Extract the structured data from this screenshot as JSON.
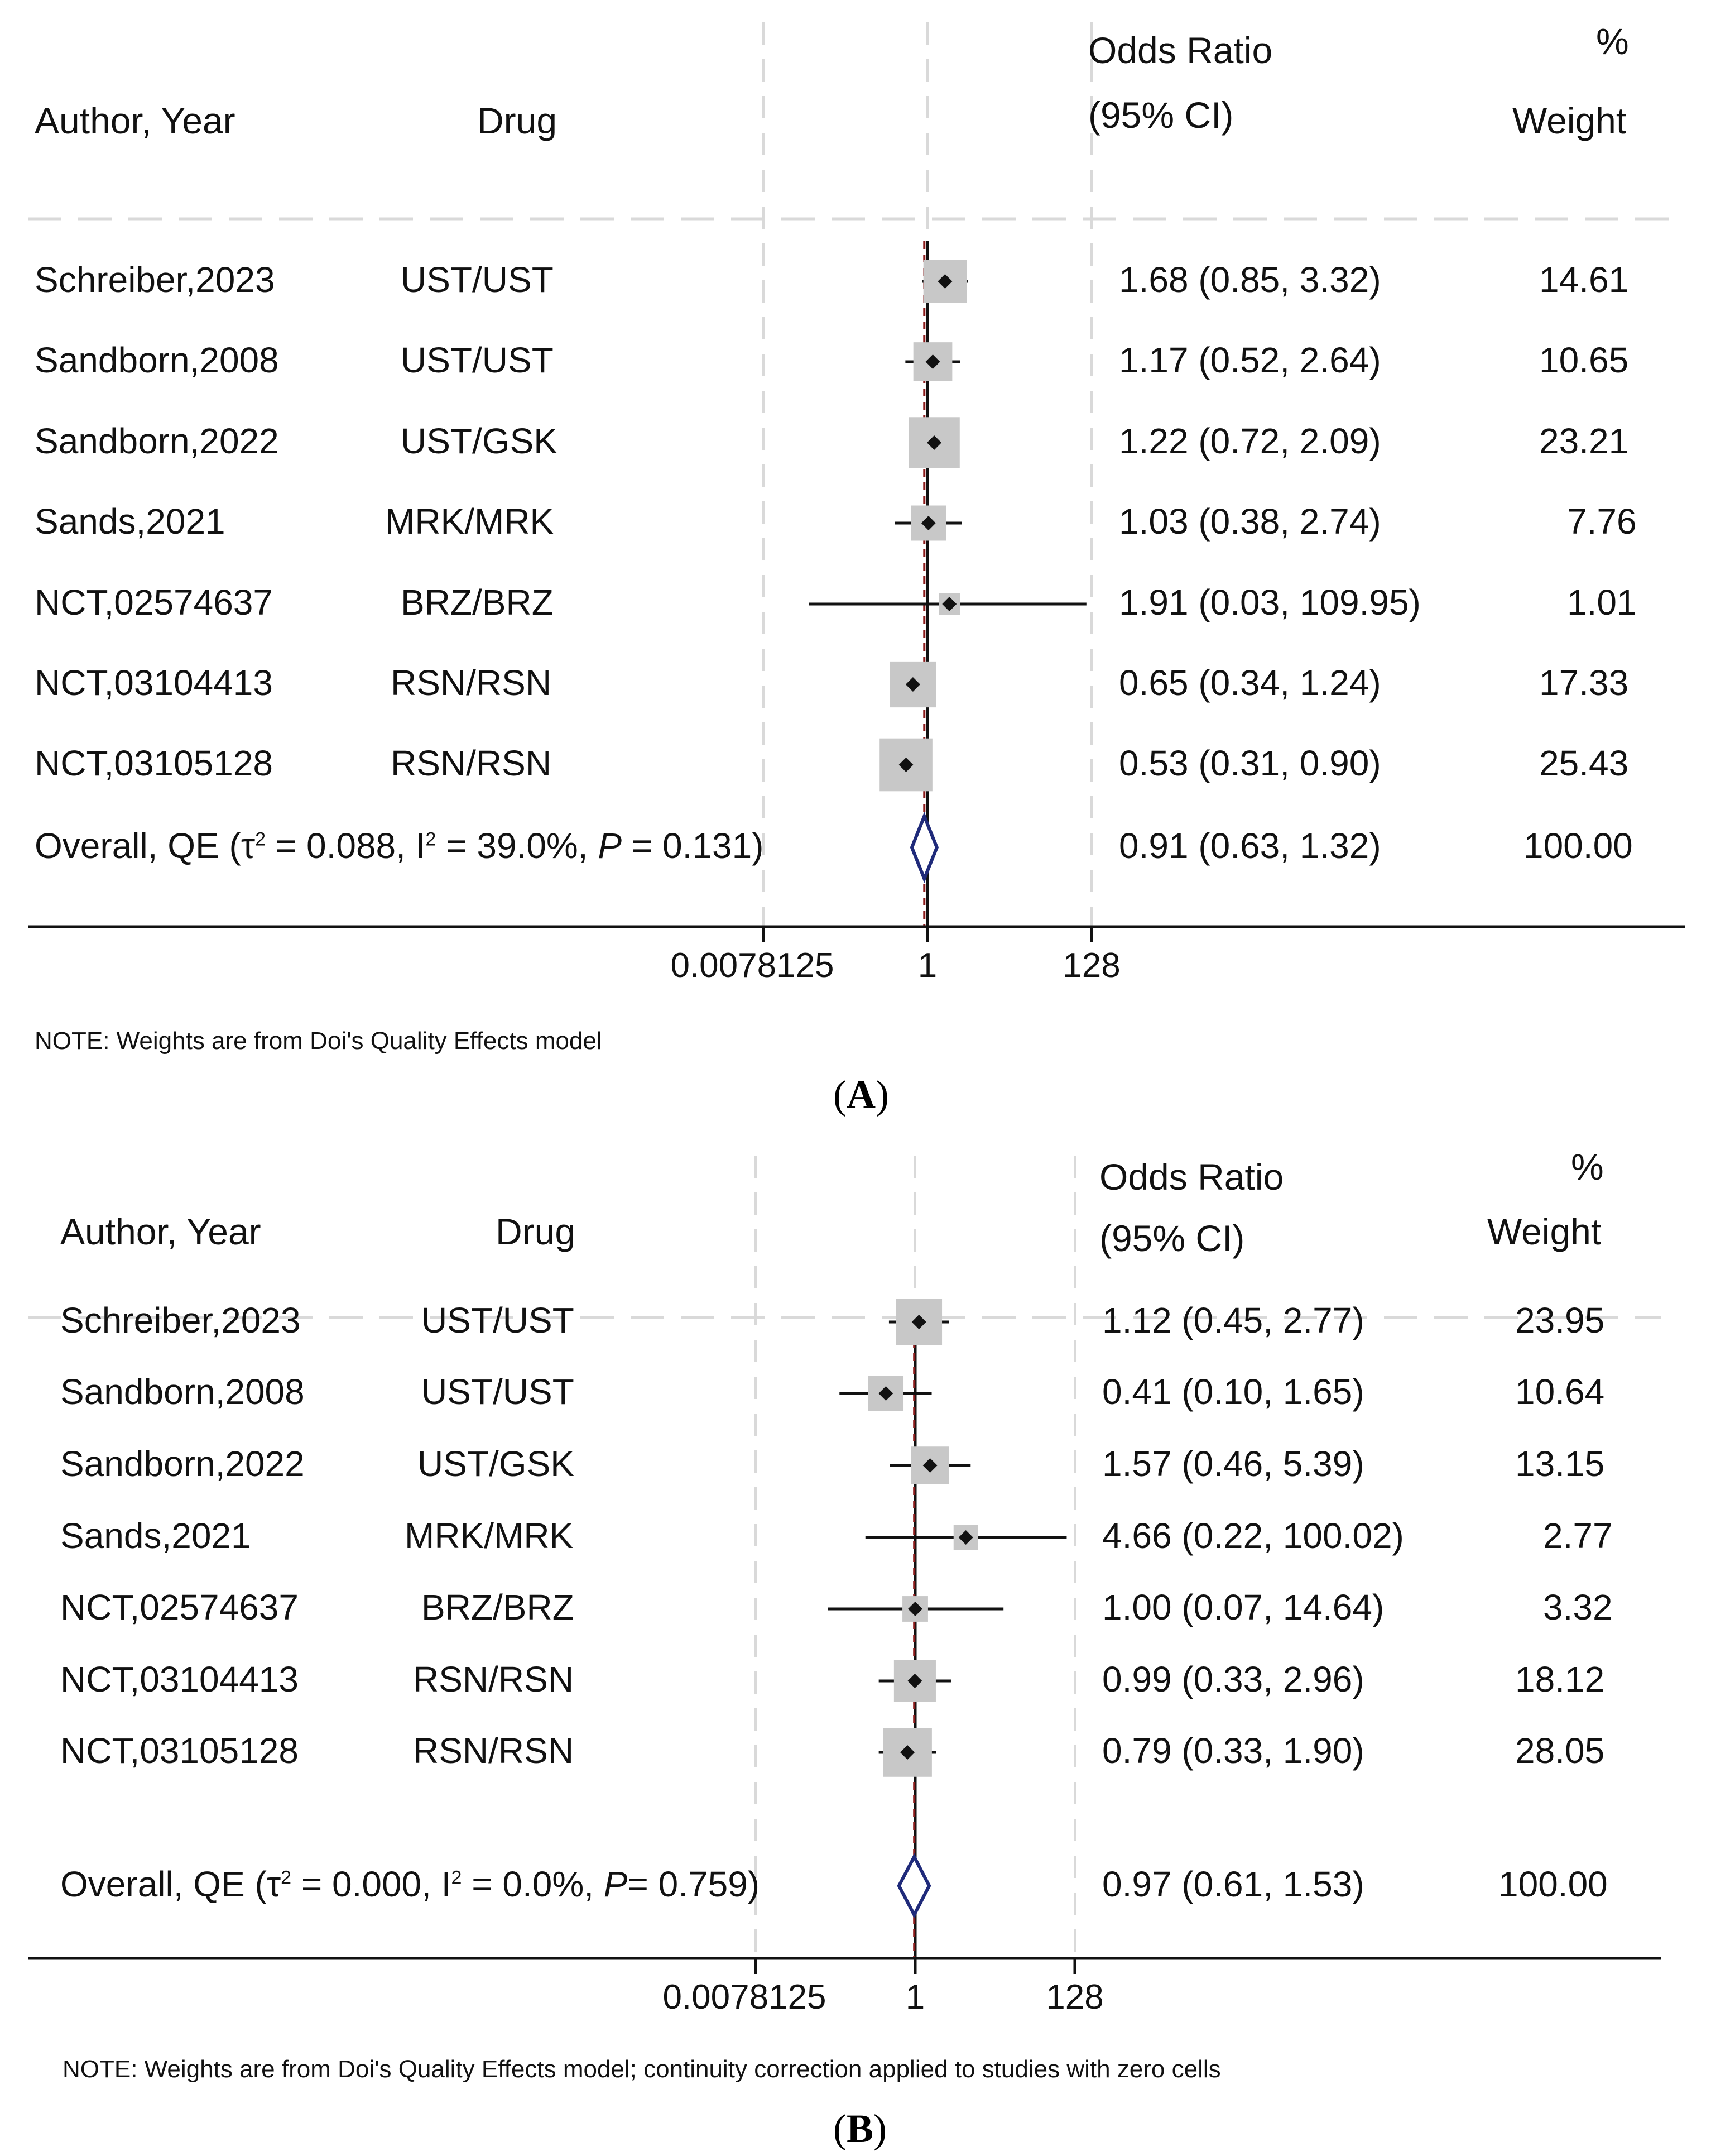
{
  "chart_data": [
    {
      "type": "forest",
      "panel_label": "A",
      "headers": {
        "author": "Author, Year",
        "drug": "Drug",
        "or_line1": "Odds Ratio",
        "or_line2": "(95% CI)",
        "weight_line1": "%",
        "weight_line2": "Weight"
      },
      "x_scale": "log2",
      "xlim": [
        0.0078125,
        128
      ],
      "ticks": [
        "0.0078125",
        "1",
        "128"
      ],
      "tick_values": [
        0.0078125,
        1,
        128
      ],
      "null_value": 1,
      "overall_or": 0.91,
      "studies": [
        {
          "author": "Schreiber,2023",
          "drug": "UST/UST",
          "or": 1.68,
          "lo": 0.85,
          "hi": 3.32,
          "weight": 14.61,
          "or_text": "1.68 (0.85, 3.32)",
          "weight_text": "14.61"
        },
        {
          "author": "Sandborn,2008",
          "drug": "UST/UST",
          "or": 1.17,
          "lo": 0.52,
          "hi": 2.64,
          "weight": 10.65,
          "or_text": "1.17 (0.52, 2.64)",
          "weight_text": "10.65"
        },
        {
          "author": "Sandborn,2022",
          "drug": "UST/GSK",
          "or": 1.22,
          "lo": 0.72,
          "hi": 2.09,
          "weight": 23.21,
          "or_text": "1.22 (0.72, 2.09)",
          "weight_text": "23.21"
        },
        {
          "author": "Sands,2021",
          "drug": "MRK/MRK",
          "or": 1.03,
          "lo": 0.38,
          "hi": 2.74,
          "weight": 7.76,
          "or_text": "1.03 (0.38, 2.74)",
          "weight_text": "7.76"
        },
        {
          "author": "NCT,02574637",
          "drug": "BRZ/BRZ",
          "or": 1.91,
          "lo": 0.03,
          "hi": 109.95,
          "weight": 1.01,
          "or_text": "1.91 (0.03, 109.95)",
          "weight_text": "1.01"
        },
        {
          "author": "NCT,03104413",
          "drug": "RSN/RSN",
          "or": 0.65,
          "lo": 0.34,
          "hi": 1.24,
          "weight": 17.33,
          "or_text": "0.65 (0.34, 1.24)",
          "weight_text": "17.33"
        },
        {
          "author": "NCT,03105128",
          "drug": "RSN/RSN",
          "or": 0.53,
          "lo": 0.31,
          "hi": 0.9,
          "weight": 25.43,
          "or_text": "0.53 (0.31, 0.90)",
          "weight_text": "25.43"
        }
      ],
      "overall": {
        "label_prefix": "Overall, QE (τ",
        "tau_sup": "2",
        "label_mid": " = 0.088, I",
        "i_sup": "2",
        "label_i2": " = 39.0%, ",
        "p_label": "P",
        "label_end": " = 0.131)",
        "or": 0.91,
        "lo": 0.63,
        "hi": 1.32,
        "or_text": "0.91 (0.63, 1.32)",
        "weight_text": "100.00"
      },
      "note": "NOTE: Weights are from Doi's Quality Effects model"
    },
    {
      "type": "forest",
      "panel_label": "B",
      "headers": {
        "author": "Author, Year",
        "drug": "Drug",
        "or_line1": "Odds Ratio",
        "or_line2": "(95% CI)",
        "weight_line1": "%",
        "weight_line2": "Weight"
      },
      "x_scale": "log2",
      "xlim": [
        0.0078125,
        128
      ],
      "ticks": [
        "0.0078125",
        "1",
        "128"
      ],
      "tick_values": [
        0.0078125,
        1,
        128
      ],
      "null_value": 1,
      "overall_or": 0.97,
      "studies": [
        {
          "author": "Schreiber,2023",
          "drug": "UST/UST",
          "or": 1.12,
          "lo": 0.45,
          "hi": 2.77,
          "weight": 23.95,
          "or_text": "1.12 (0.45, 2.77)",
          "weight_text": "23.95"
        },
        {
          "author": "Sandborn,2008",
          "drug": "UST/UST",
          "or": 0.41,
          "lo": 0.1,
          "hi": 1.65,
          "weight": 10.64,
          "or_text": "0.41 (0.10, 1.65)",
          "weight_text": "10.64"
        },
        {
          "author": "Sandborn,2022",
          "drug": "UST/GSK",
          "or": 1.57,
          "lo": 0.46,
          "hi": 5.39,
          "weight": 13.15,
          "or_text": "1.57 (0.46, 5.39)",
          "weight_text": "13.15"
        },
        {
          "author": "Sands,2021",
          "drug": "MRK/MRK",
          "or": 4.66,
          "lo": 0.22,
          "hi": 100.02,
          "weight": 2.77,
          "or_text": "4.66 (0.22, 100.02)",
          "weight_text": "2.77"
        },
        {
          "author": "NCT,02574637",
          "drug": "BRZ/BRZ",
          "or": 1.0,
          "lo": 0.07,
          "hi": 14.64,
          "weight": 3.32,
          "or_text": "1.00 (0.07, 14.64)",
          "weight_text": "3.32"
        },
        {
          "author": "NCT,03104413",
          "drug": "RSN/RSN",
          "or": 0.99,
          "lo": 0.33,
          "hi": 2.96,
          "weight": 18.12,
          "or_text": "0.99 (0.33, 2.96)",
          "weight_text": "18.12"
        },
        {
          "author": "NCT,03105128",
          "drug": "RSN/RSN",
          "or": 0.79,
          "lo": 0.33,
          "hi": 1.9,
          "weight": 28.05,
          "or_text": "0.79 (0.33, 1.90)",
          "weight_text": "28.05"
        }
      ],
      "overall": {
        "label_prefix": "Overall, QE (τ",
        "tau_sup": "2",
        "label_mid": " = 0.000, I",
        "i_sup": "2",
        "label_i2": " = 0.0%, ",
        "p_label": "P",
        "label_end": "= 0.759)",
        "or": 0.97,
        "lo": 0.61,
        "hi": 1.53,
        "or_text": "0.97 (0.61, 1.53)",
        "weight_text": "100.00"
      },
      "note": "NOTE: Weights are from Doi's Quality Effects model; continuity correction applied to studies with zero cells"
    }
  ],
  "colors": {
    "ink": "#111111",
    "grid": "#d9d9d9",
    "box": "#c8c8c8",
    "diamond": "#1f2a7a",
    "overall_line": "#8b1a1a"
  }
}
